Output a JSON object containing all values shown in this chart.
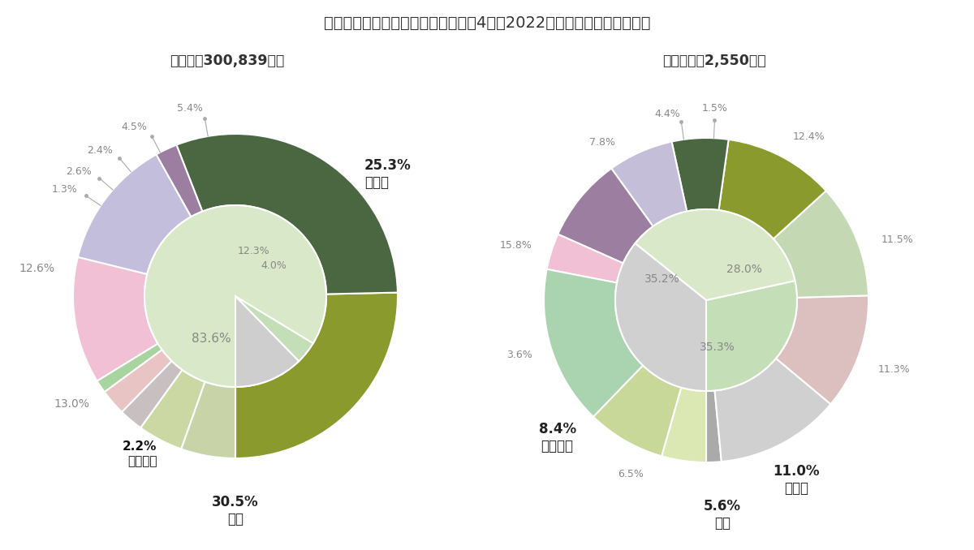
{
  "title": "事故類型別交通事故発生状況【令和4年（2022年）中】クローズアップ",
  "bg": "#ffffff",
  "chart1": {
    "title": "全事故【300,839件】",
    "outer_values": [
      25.3,
      30.5,
      2.2,
      13.0,
      12.6,
      1.3,
      2.6,
      2.4,
      4.5,
      5.4
    ],
    "outer_colors": [
      "#8b9a2c",
      "#4a6741",
      "#9b7ea0",
      "#c4bedd",
      "#f2c0d4",
      "#a8d4a0",
      "#e8c4c4",
      "#c8c0c0",
      "#ccd8a4",
      "#c8d4a8"
    ],
    "inner_values": [
      12.3,
      4.0,
      83.6
    ],
    "inner_colors": [
      "#cecece",
      "#c4deb8",
      "#d8e8c8"
    ]
  },
  "chart2": {
    "title": "死亡事故【2,550件】",
    "outer_values": [
      1.5,
      12.4,
      11.5,
      11.3,
      11.0,
      5.6,
      6.5,
      8.4,
      3.6,
      15.8,
      7.8,
      4.4
    ],
    "outer_colors": [
      "#aaaaaa",
      "#d0d0d0",
      "#dcc0c0",
      "#c4d8b4",
      "#8b9a2c",
      "#4a6741",
      "#c4bed8",
      "#9b7ea0",
      "#f2c0d4",
      "#aad4b0",
      "#c8d898",
      "#dce8b4"
    ],
    "inner_values": [
      28.0,
      35.3,
      35.2
    ],
    "inner_colors": [
      "#c4deb8",
      "#d8e8c8",
      "#d0d0d0"
    ]
  }
}
